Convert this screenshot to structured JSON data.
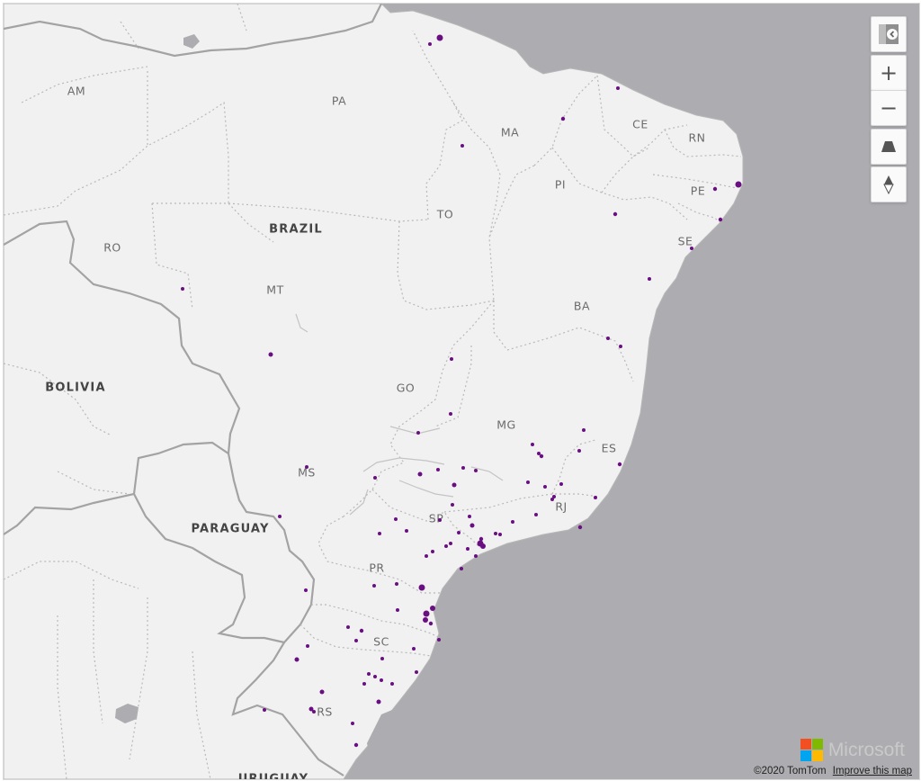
{
  "map": {
    "colors": {
      "ocean": "#adacb0",
      "land": "#f1f1f1",
      "state_border": "#bdbdbd",
      "country_border": "#a5a5a5",
      "marker": "#6a0f82"
    },
    "country_labels": [
      "BRAZIL",
      "BOLIVIA",
      "PARAGUAY",
      "URUGUAY"
    ],
    "state_labels": [
      "AM",
      "PA",
      "MA",
      "CE",
      "RN",
      "PI",
      "PE",
      "TO",
      "SE",
      "RO",
      "MT",
      "BA",
      "GO",
      "MG",
      "ES",
      "MS",
      "RJ",
      "SP",
      "PR",
      "SC",
      "RS"
    ],
    "marker_count": 121
  },
  "controls": {
    "style_picker_icon": "map-style-icon",
    "zoom_in_label": "+",
    "zoom_out_label": "−",
    "pitch_icon": "pitch-icon",
    "compass_icon": "compass-icon"
  },
  "branding": {
    "logo_word": "Microsoft",
    "logo_colors": [
      "#f25022",
      "#7fba00",
      "#00a4ef",
      "#ffb900"
    ]
  },
  "attribution": {
    "copyright": "©2020 TomTom",
    "improve_link": "Improve this map"
  }
}
